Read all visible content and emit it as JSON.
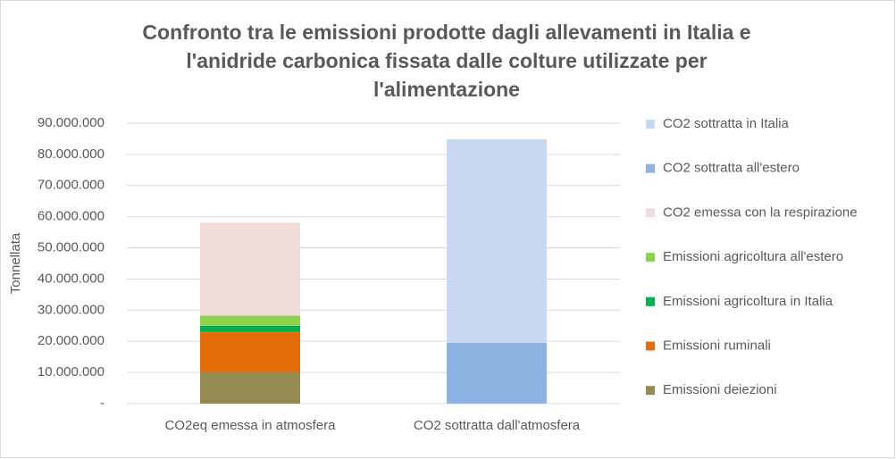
{
  "chart_data": {
    "type": "stacked_bar",
    "title": [
      "Confronto tra le emissioni prodotte dagli allevamenti in Italia  e",
      "l'anidride carbonica fissata dalle colture utilizzate per",
      "l'alimentazione"
    ],
    "y_label": "Tonnellata",
    "categories": [
      "CO2eq emessa in atmosfera",
      "CO2 sottratta dall'atmosfera"
    ],
    "series": [
      {
        "name": "Emissioni deiezioni",
        "color": "#948a54",
        "values": [
          10000000,
          null
        ]
      },
      {
        "name": "Emissioni ruminali",
        "color": "#e46c0a",
        "values": [
          13000000,
          null
        ]
      },
      {
        "name": "Emissioni agricoltura in Italia",
        "color": "#00b050",
        "values": [
          2000000,
          null
        ]
      },
      {
        "name": "Emissioni agricoltura all'estero",
        "color": "#92d050",
        "values": [
          3300000,
          null
        ]
      },
      {
        "name": "CO2 emessa con la respirazione",
        "color": "#f2dcdb",
        "values": [
          29700000,
          null
        ]
      },
      {
        "name": "CO2 sottratta all'estero",
        "color": "#8eb4e3",
        "values": [
          null,
          19500000
        ]
      },
      {
        "name": "CO2 sottratta in Italia",
        "color": "#c6d9f1",
        "values": [
          null,
          65300000
        ]
      }
    ],
    "ylim": [
      0,
      90000000
    ],
    "yticks": [
      {
        "value": 0,
        "label": "-"
      },
      {
        "value": 10000000,
        "label": "10.000.000"
      },
      {
        "value": 20000000,
        "label": "20.000.000"
      },
      {
        "value": 30000000,
        "label": "30.000.000"
      },
      {
        "value": 40000000,
        "label": "40.000.000"
      },
      {
        "value": 50000000,
        "label": "50.000.000"
      },
      {
        "value": 60000000,
        "label": "60.000.000"
      },
      {
        "value": 70000000,
        "label": "70.000.000"
      },
      {
        "value": 80000000,
        "label": "80.000.000"
      },
      {
        "value": 90000000,
        "label": "90.000.000"
      }
    ],
    "grid": true,
    "legend": "right"
  }
}
